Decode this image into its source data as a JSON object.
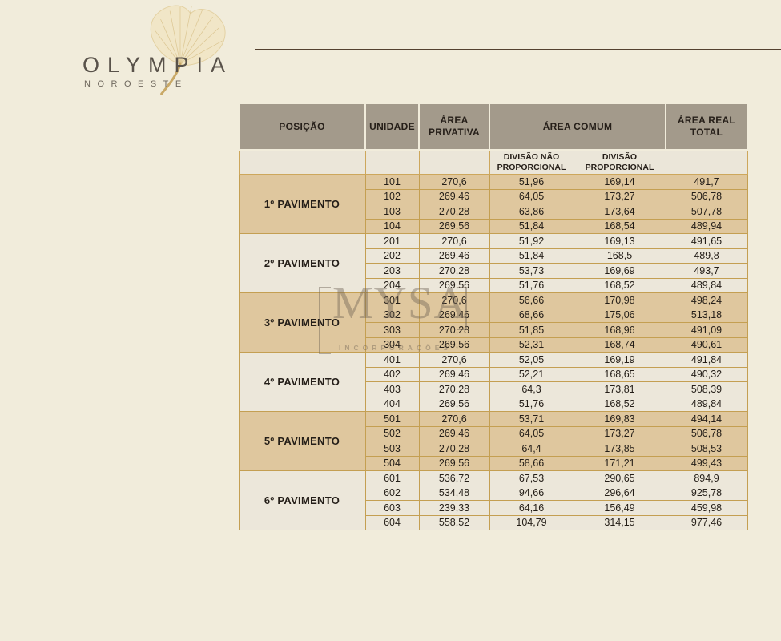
{
  "logo": {
    "title": "OLYMPIA",
    "subtitle": "NOROESTE"
  },
  "watermark": {
    "name": "MYSA",
    "subtitle": "INCORPORAÇÕES"
  },
  "colors": {
    "page_background": "#f1ecdb",
    "header_background": "#a39a8b",
    "row_tan": "#dfc79e",
    "row_cream": "#ece7da",
    "cell_border_gold": "#c49f52",
    "top_rule_brown": "#54412f",
    "text_dark": "#241e18"
  },
  "table": {
    "headers": {
      "posicao": "POSIÇÃO",
      "unidade": "UNIDADE",
      "area_privativa": "ÁREA PRIVATIVA",
      "area_comum": "ÁREA COMUM",
      "area_real_total": "ÁREA REAL TOTAL",
      "divisao_nao_proporcional": "DIVISÃO NÃO PROPORCIONAL",
      "divisao_proporcional": "DIVISÃO PROPORCIONAL"
    },
    "groups": [
      {
        "posicao": "1º PAVIMENTO",
        "rows": [
          {
            "unidade": "101",
            "area_privativa": "270,6",
            "divisao_nao_proporcional": "51,96",
            "divisao_proporcional": "169,14",
            "area_real_total": "491,7"
          },
          {
            "unidade": "102",
            "area_privativa": "269,46",
            "divisao_nao_proporcional": "64,05",
            "divisao_proporcional": "173,27",
            "area_real_total": "506,78"
          },
          {
            "unidade": "103",
            "area_privativa": "270,28",
            "divisao_nao_proporcional": "63,86",
            "divisao_proporcional": "173,64",
            "area_real_total": "507,78"
          },
          {
            "unidade": "104",
            "area_privativa": "269,56",
            "divisao_nao_proporcional": "51,84",
            "divisao_proporcional": "168,54",
            "area_real_total": "489,94"
          }
        ]
      },
      {
        "posicao": "2º PAVIMENTO",
        "rows": [
          {
            "unidade": "201",
            "area_privativa": "270,6",
            "divisao_nao_proporcional": "51,92",
            "divisao_proporcional": "169,13",
            "area_real_total": "491,65"
          },
          {
            "unidade": "202",
            "area_privativa": "269,46",
            "divisao_nao_proporcional": "51,84",
            "divisao_proporcional": "168,5",
            "area_real_total": "489,8"
          },
          {
            "unidade": "203",
            "area_privativa": "270,28",
            "divisao_nao_proporcional": "53,73",
            "divisao_proporcional": "169,69",
            "area_real_total": "493,7"
          },
          {
            "unidade": "204",
            "area_privativa": "269,56",
            "divisao_nao_proporcional": "51,76",
            "divisao_proporcional": "168,52",
            "area_real_total": "489,84"
          }
        ]
      },
      {
        "posicao": "3º PAVIMENTO",
        "rows": [
          {
            "unidade": "301",
            "area_privativa": "270,6",
            "divisao_nao_proporcional": "56,66",
            "divisao_proporcional": "170,98",
            "area_real_total": "498,24"
          },
          {
            "unidade": "302",
            "area_privativa": "269,46",
            "divisao_nao_proporcional": "68,66",
            "divisao_proporcional": "175,06",
            "area_real_total": "513,18"
          },
          {
            "unidade": "303",
            "area_privativa": "270,28",
            "divisao_nao_proporcional": "51,85",
            "divisao_proporcional": "168,96",
            "area_real_total": "491,09"
          },
          {
            "unidade": "304",
            "area_privativa": "269,56",
            "divisao_nao_proporcional": "52,31",
            "divisao_proporcional": "168,74",
            "area_real_total": "490,61"
          }
        ]
      },
      {
        "posicao": "4º PAVIMENTO",
        "rows": [
          {
            "unidade": "401",
            "area_privativa": "270,6",
            "divisao_nao_proporcional": "52,05",
            "divisao_proporcional": "169,19",
            "area_real_total": "491,84"
          },
          {
            "unidade": "402",
            "area_privativa": "269,46",
            "divisao_nao_proporcional": "52,21",
            "divisao_proporcional": "168,65",
            "area_real_total": "490,32"
          },
          {
            "unidade": "403",
            "area_privativa": "270,28",
            "divisao_nao_proporcional": "64,3",
            "divisao_proporcional": "173,81",
            "area_real_total": "508,39"
          },
          {
            "unidade": "404",
            "area_privativa": "269,56",
            "divisao_nao_proporcional": "51,76",
            "divisao_proporcional": "168,52",
            "area_real_total": "489,84"
          }
        ]
      },
      {
        "posicao": "5º PAVIMENTO",
        "rows": [
          {
            "unidade": "501",
            "area_privativa": "270,6",
            "divisao_nao_proporcional": "53,71",
            "divisao_proporcional": "169,83",
            "area_real_total": "494,14"
          },
          {
            "unidade": "502",
            "area_privativa": "269,46",
            "divisao_nao_proporcional": "64,05",
            "divisao_proporcional": "173,27",
            "area_real_total": "506,78"
          },
          {
            "unidade": "503",
            "area_privativa": "270,28",
            "divisao_nao_proporcional": "64,4",
            "divisao_proporcional": "173,85",
            "area_real_total": "508,53"
          },
          {
            "unidade": "504",
            "area_privativa": "269,56",
            "divisao_nao_proporcional": "58,66",
            "divisao_proporcional": "171,21",
            "area_real_total": "499,43"
          }
        ]
      },
      {
        "posicao": "6º PAVIMENTO",
        "rows": [
          {
            "unidade": "601",
            "area_privativa": "536,72",
            "divisao_nao_proporcional": "67,53",
            "divisao_proporcional": "290,65",
            "area_real_total": "894,9"
          },
          {
            "unidade": "602",
            "area_privativa": "534,48",
            "divisao_nao_proporcional": "94,66",
            "divisao_proporcional": "296,64",
            "area_real_total": "925,78"
          },
          {
            "unidade": "603",
            "area_privativa": "239,33",
            "divisao_nao_proporcional": "64,16",
            "divisao_proporcional": "156,49",
            "area_real_total": "459,98"
          },
          {
            "unidade": "604",
            "area_privativa": "558,52",
            "divisao_nao_proporcional": "104,79",
            "divisao_proporcional": "314,15",
            "area_real_total": "977,46"
          }
        ]
      }
    ]
  }
}
